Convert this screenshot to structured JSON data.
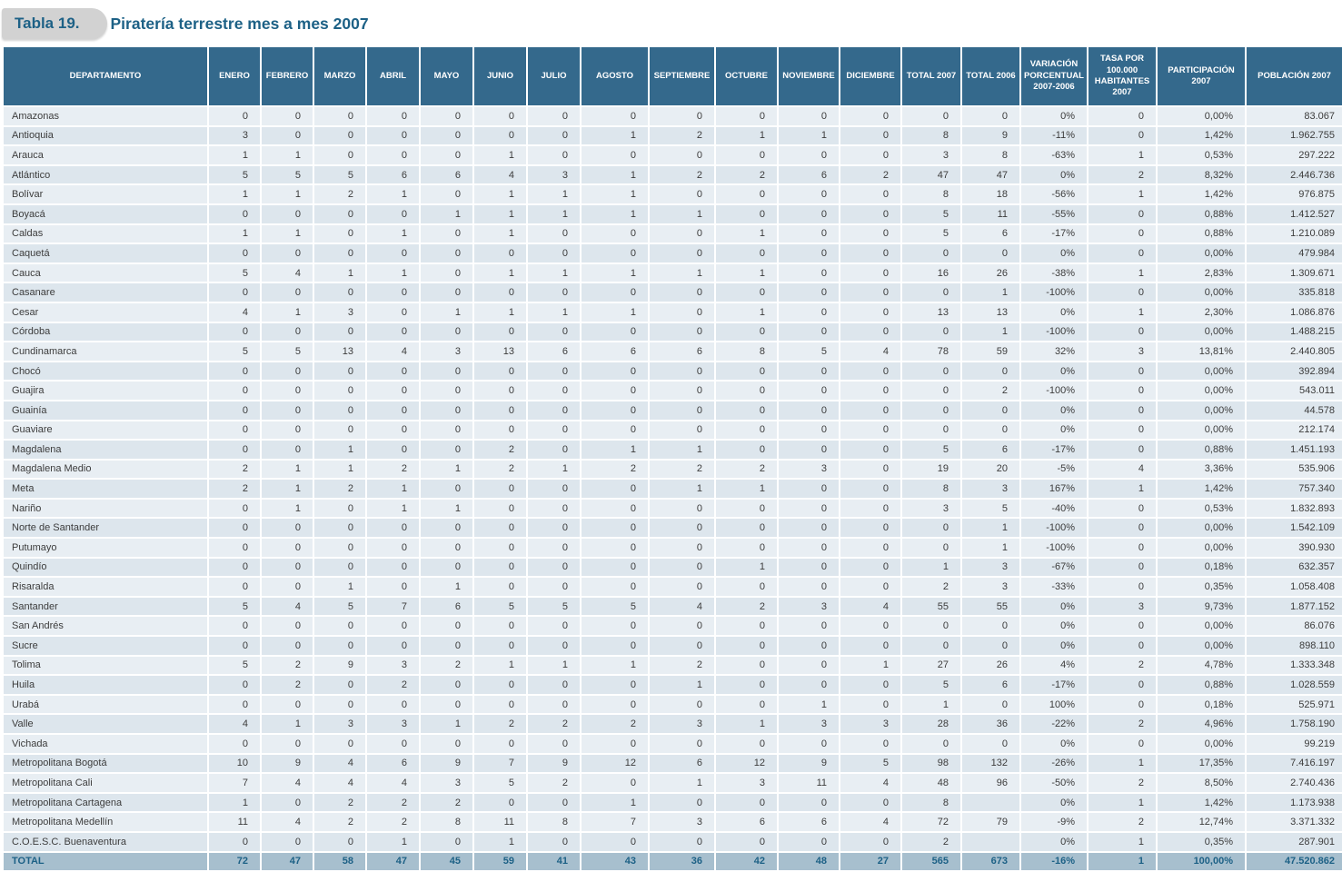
{
  "title": {
    "tab_label": "Tabla 19.",
    "text": "Piratería terrestre mes a mes 2007"
  },
  "colors": {
    "header_bg": "#34698c",
    "row_light": "#e8eef3",
    "row_dark": "#dde6ed",
    "total_bg": "#a7bfce",
    "accent_blue": "#1d6186"
  },
  "table": {
    "columns": [
      "DEPARTAMENTO",
      "ENERO",
      "FEBRERO",
      "MARZO",
      "ABRIL",
      "MAYO",
      "JUNIO",
      "JULIO",
      "AGOSTO",
      "SEPTIEMBRE",
      "OCTUBRE",
      "NOVIEMBRE",
      "DICIEMBRE",
      "TOTAL 2007",
      "TOTAL 2006",
      "VARIACIÓN PORCENTUAL 2007-2006",
      "TASA POR 100.000 HABITANTES 2007",
      "PARTICIPACIÓN 2007",
      "POBLACIÓN 2007"
    ],
    "rows": [
      [
        "Amazonas",
        0,
        0,
        0,
        0,
        0,
        0,
        0,
        0,
        0,
        0,
        0,
        0,
        0,
        0,
        "0%",
        0,
        "0,00%",
        "83.067"
      ],
      [
        "Antioquia",
        3,
        0,
        0,
        0,
        0,
        0,
        0,
        1,
        2,
        1,
        1,
        0,
        8,
        9,
        "-11%",
        0,
        "1,42%",
        "1.962.755"
      ],
      [
        "Arauca",
        1,
        1,
        0,
        0,
        0,
        1,
        0,
        0,
        0,
        0,
        0,
        0,
        3,
        8,
        "-63%",
        1,
        "0,53%",
        "297.222"
      ],
      [
        "Atlántico",
        5,
        5,
        5,
        6,
        6,
        4,
        3,
        1,
        2,
        2,
        6,
        2,
        47,
        47,
        "0%",
        2,
        "8,32%",
        "2.446.736"
      ],
      [
        "Bolívar",
        1,
        1,
        2,
        1,
        0,
        1,
        1,
        1,
        0,
        0,
        0,
        0,
        8,
        18,
        "-56%",
        1,
        "1,42%",
        "976.875"
      ],
      [
        "Boyacá",
        0,
        0,
        0,
        0,
        1,
        1,
        1,
        1,
        1,
        0,
        0,
        0,
        5,
        11,
        "-55%",
        0,
        "0,88%",
        "1.412.527"
      ],
      [
        "Caldas",
        1,
        1,
        0,
        1,
        0,
        1,
        0,
        0,
        0,
        1,
        0,
        0,
        5,
        6,
        "-17%",
        0,
        "0,88%",
        "1.210.089"
      ],
      [
        "Caquetá",
        0,
        0,
        0,
        0,
        0,
        0,
        0,
        0,
        0,
        0,
        0,
        0,
        0,
        0,
        "0%",
        0,
        "0,00%",
        "479.984"
      ],
      [
        "Cauca",
        5,
        4,
        1,
        1,
        0,
        1,
        1,
        1,
        1,
        1,
        0,
        0,
        16,
        26,
        "-38%",
        1,
        "2,83%",
        "1.309.671"
      ],
      [
        "Casanare",
        0,
        0,
        0,
        0,
        0,
        0,
        0,
        0,
        0,
        0,
        0,
        0,
        0,
        1,
        "-100%",
        0,
        "0,00%",
        "335.818"
      ],
      [
        "Cesar",
        4,
        1,
        3,
        0,
        1,
        1,
        1,
        1,
        0,
        1,
        0,
        0,
        13,
        13,
        "0%",
        1,
        "2,30%",
        "1.086.876"
      ],
      [
        "Córdoba",
        0,
        0,
        0,
        0,
        0,
        0,
        0,
        0,
        0,
        0,
        0,
        0,
        0,
        1,
        "-100%",
        0,
        "0,00%",
        "1.488.215"
      ],
      [
        "Cundinamarca",
        5,
        5,
        13,
        4,
        3,
        13,
        6,
        6,
        6,
        8,
        5,
        4,
        78,
        59,
        "32%",
        3,
        "13,81%",
        "2.440.805"
      ],
      [
        "Chocó",
        0,
        0,
        0,
        0,
        0,
        0,
        0,
        0,
        0,
        0,
        0,
        0,
        0,
        0,
        "0%",
        0,
        "0,00%",
        "392.894"
      ],
      [
        "Guajira",
        0,
        0,
        0,
        0,
        0,
        0,
        0,
        0,
        0,
        0,
        0,
        0,
        0,
        2,
        "-100%",
        0,
        "0,00%",
        "543.011"
      ],
      [
        "Guainía",
        0,
        0,
        0,
        0,
        0,
        0,
        0,
        0,
        0,
        0,
        0,
        0,
        0,
        0,
        "0%",
        0,
        "0,00%",
        "44.578"
      ],
      [
        "Guaviare",
        0,
        0,
        0,
        0,
        0,
        0,
        0,
        0,
        0,
        0,
        0,
        0,
        0,
        0,
        "0%",
        0,
        "0,00%",
        "212.174"
      ],
      [
        "Magdalena",
        0,
        0,
        1,
        0,
        0,
        2,
        0,
        1,
        1,
        0,
        0,
        0,
        5,
        6,
        "-17%",
        0,
        "0,88%",
        "1.451.193"
      ],
      [
        "Magdalena Medio",
        2,
        1,
        1,
        2,
        1,
        2,
        1,
        2,
        2,
        2,
        3,
        0,
        19,
        20,
        "-5%",
        4,
        "3,36%",
        "535.906"
      ],
      [
        "Meta",
        2,
        1,
        2,
        1,
        0,
        0,
        0,
        0,
        1,
        1,
        0,
        0,
        8,
        3,
        "167%",
        1,
        "1,42%",
        "757.340"
      ],
      [
        "Nariño",
        0,
        1,
        0,
        1,
        1,
        0,
        0,
        0,
        0,
        0,
        0,
        0,
        3,
        5,
        "-40%",
        0,
        "0,53%",
        "1.832.893"
      ],
      [
        "Norte de Santander",
        0,
        0,
        0,
        0,
        0,
        0,
        0,
        0,
        0,
        0,
        0,
        0,
        0,
        1,
        "-100%",
        0,
        "0,00%",
        "1.542.109"
      ],
      [
        "Putumayo",
        0,
        0,
        0,
        0,
        0,
        0,
        0,
        0,
        0,
        0,
        0,
        0,
        0,
        1,
        "-100%",
        0,
        "0,00%",
        "390.930"
      ],
      [
        "Quindío",
        0,
        0,
        0,
        0,
        0,
        0,
        0,
        0,
        0,
        1,
        0,
        0,
        1,
        3,
        "-67%",
        0,
        "0,18%",
        "632.357"
      ],
      [
        "Risaralda",
        0,
        0,
        1,
        0,
        1,
        0,
        0,
        0,
        0,
        0,
        0,
        0,
        2,
        3,
        "-33%",
        0,
        "0,35%",
        "1.058.408"
      ],
      [
        "Santander",
        5,
        4,
        5,
        7,
        6,
        5,
        5,
        5,
        4,
        2,
        3,
        4,
        55,
        55,
        "0%",
        3,
        "9,73%",
        "1.877.152"
      ],
      [
        "San Andrés",
        0,
        0,
        0,
        0,
        0,
        0,
        0,
        0,
        0,
        0,
        0,
        0,
        0,
        0,
        "0%",
        0,
        "0,00%",
        "86.076"
      ],
      [
        "Sucre",
        0,
        0,
        0,
        0,
        0,
        0,
        0,
        0,
        0,
        0,
        0,
        0,
        0,
        0,
        "0%",
        0,
        "0,00%",
        "898.110"
      ],
      [
        "Tolima",
        5,
        2,
        9,
        3,
        2,
        1,
        1,
        1,
        2,
        0,
        0,
        1,
        27,
        26,
        "4%",
        2,
        "4,78%",
        "1.333.348"
      ],
      [
        "Huila",
        0,
        2,
        0,
        2,
        0,
        0,
        0,
        0,
        1,
        0,
        0,
        0,
        5,
        6,
        "-17%",
        0,
        "0,88%",
        "1.028.559"
      ],
      [
        "Urabá",
        0,
        0,
        0,
        0,
        0,
        0,
        0,
        0,
        0,
        0,
        1,
        0,
        1,
        0,
        "100%",
        0,
        "0,18%",
        "525.971"
      ],
      [
        "Valle",
        4,
        1,
        3,
        3,
        1,
        2,
        2,
        2,
        3,
        1,
        3,
        3,
        28,
        36,
        "-22%",
        2,
        "4,96%",
        "1.758.190"
      ],
      [
        "Vichada",
        0,
        0,
        0,
        0,
        0,
        0,
        0,
        0,
        0,
        0,
        0,
        0,
        0,
        0,
        "0%",
        0,
        "0,00%",
        "99.219"
      ],
      [
        "Metropolitana Bogotá",
        10,
        9,
        4,
        6,
        9,
        7,
        9,
        12,
        6,
        12,
        9,
        5,
        98,
        132,
        "-26%",
        1,
        "17,35%",
        "7.416.197"
      ],
      [
        "Metropolitana Cali",
        7,
        4,
        4,
        4,
        3,
        5,
        2,
        0,
        1,
        3,
        11,
        4,
        48,
        96,
        "-50%",
        2,
        "8,50%",
        "2.740.436"
      ],
      [
        "Metropolitana Cartagena",
        1,
        0,
        2,
        2,
        2,
        0,
        0,
        1,
        0,
        0,
        0,
        0,
        8,
        "",
        "0%",
        1,
        "1,42%",
        "1.173.938"
      ],
      [
        "Metropolitana Medellín",
        11,
        4,
        2,
        2,
        8,
        11,
        8,
        7,
        3,
        6,
        6,
        4,
        72,
        79,
        "-9%",
        2,
        "12,74%",
        "3.371.332"
      ],
      [
        "C.O.E.S.C. Buenaventura",
        0,
        0,
        0,
        1,
        0,
        1,
        0,
        0,
        0,
        0,
        0,
        0,
        2,
        "",
        "0%",
        1,
        "0,35%",
        "287.901"
      ]
    ],
    "total_row": [
      "TOTAL",
      72,
      47,
      58,
      47,
      45,
      59,
      41,
      43,
      36,
      42,
      48,
      27,
      565,
      673,
      "-16%",
      1,
      "100,00%",
      "47.520.862"
    ]
  }
}
